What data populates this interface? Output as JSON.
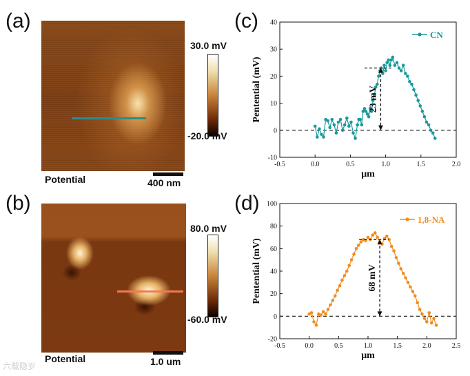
{
  "panels": {
    "a": {
      "letter": "(a)",
      "caption": "Potential",
      "scalebar": "400 nm",
      "colorbar": {
        "max_label": "30.0 mV",
        "min_label": "-20.0 mV"
      },
      "line_color": "#2a8c8c"
    },
    "b": {
      "letter": "(b)",
      "caption": "Potential",
      "scalebar": "1.0 um",
      "colorbar": {
        "max_label": "80.0 mV",
        "min_label": "-60.0 mV"
      },
      "line_color": "#f27a52"
    },
    "c": {
      "letter": "(c)"
    },
    "d": {
      "letter": "(d)"
    }
  },
  "watermark": "六载隐岁",
  "chart_data": [
    {
      "id": "c",
      "type": "line",
      "xlabel": "μm",
      "ylabel": "Pentential (mV)",
      "xlim": [
        -0.5,
        2.0
      ],
      "ylim": [
        -10,
        40
      ],
      "xticks": [
        "-0.5",
        "0.0",
        "0.5",
        "1.0",
        "1.5",
        "2.0"
      ],
      "yticks": [
        "-10",
        "0",
        "10",
        "20",
        "30",
        "40"
      ],
      "series": [
        {
          "name": "CN",
          "color": "#1a9a9a",
          "x": [
            0.0,
            0.03,
            0.06,
            0.09,
            0.12,
            0.15,
            0.18,
            0.21,
            0.24,
            0.27,
            0.3,
            0.33,
            0.36,
            0.39,
            0.42,
            0.45,
            0.48,
            0.51,
            0.54,
            0.57,
            0.6,
            0.62,
            0.64,
            0.66,
            0.68,
            0.7,
            0.72,
            0.74,
            0.76,
            0.78,
            0.8,
            0.82,
            0.84,
            0.86,
            0.88,
            0.9,
            0.92,
            0.94,
            0.96,
            0.98,
            1.0,
            1.02,
            1.04,
            1.06,
            1.08,
            1.1,
            1.13,
            1.16,
            1.19,
            1.22,
            1.25,
            1.28,
            1.31,
            1.34,
            1.37,
            1.4,
            1.43,
            1.46,
            1.49,
            1.52,
            1.55,
            1.58,
            1.61,
            1.64,
            1.67,
            1.7
          ],
          "y": [
            1.5,
            -2.5,
            0.5,
            -1.5,
            -2.5,
            4,
            3.5,
            1,
            4,
            2,
            -1,
            3,
            4,
            0,
            2,
            4.5,
            1.5,
            3,
            -1,
            -3,
            2,
            4,
            4,
            2,
            7,
            8,
            7,
            6,
            5,
            8,
            7,
            11,
            13,
            16,
            17,
            20,
            22,
            23,
            21,
            24,
            22,
            25,
            26,
            24,
            26,
            27,
            24,
            25,
            23,
            22,
            24,
            21,
            20,
            18,
            17,
            15,
            13,
            11,
            9,
            7,
            5,
            3,
            2,
            0,
            -1,
            -3
          ]
        }
      ],
      "annotation": {
        "label": "23 mV",
        "x": 0.93,
        "y_low": 0,
        "y_high": 23,
        "cap_x_range": [
          0.7,
          1.1
        ]
      }
    },
    {
      "id": "d",
      "type": "line",
      "xlabel": "μm",
      "ylabel": "Pentential (mV)",
      "xlim": [
        -0.5,
        2.5
      ],
      "ylim": [
        -20,
        100
      ],
      "xticks": [
        "-0.5",
        "0.0",
        "0.5",
        "1.0",
        "1.5",
        "2.0",
        "2.5"
      ],
      "yticks": [
        "-20",
        "0",
        "20",
        "40",
        "60",
        "80",
        "100"
      ],
      "series": [
        {
          "name": "1,8-NA",
          "color": "#f28c1e",
          "x": [
            0.0,
            0.04,
            0.08,
            0.12,
            0.16,
            0.2,
            0.24,
            0.28,
            0.32,
            0.36,
            0.4,
            0.44,
            0.48,
            0.52,
            0.56,
            0.6,
            0.64,
            0.68,
            0.72,
            0.76,
            0.8,
            0.84,
            0.88,
            0.92,
            0.96,
            1.0,
            1.04,
            1.08,
            1.12,
            1.16,
            1.2,
            1.24,
            1.28,
            1.32,
            1.36,
            1.4,
            1.44,
            1.48,
            1.52,
            1.56,
            1.6,
            1.64,
            1.68,
            1.72,
            1.76,
            1.8,
            1.84,
            1.88,
            1.92,
            1.96,
            2.0,
            2.04,
            2.08,
            2.12,
            2.16
          ],
          "y": [
            2,
            3,
            -5,
            -8,
            2,
            1,
            4,
            2,
            6,
            10,
            14,
            18,
            23,
            27,
            32,
            36,
            40,
            45,
            50,
            55,
            60,
            63,
            66,
            68,
            67,
            70,
            68,
            72,
            74,
            70,
            66,
            64,
            69,
            71,
            68,
            62,
            58,
            52,
            47,
            42,
            38,
            34,
            30,
            26,
            22,
            18,
            12,
            6,
            2,
            -2,
            -5,
            3,
            -6,
            -2,
            -8
          ]
        }
      ],
      "annotation": {
        "label": "68 mV",
        "x": 1.2,
        "y_low": 0,
        "y_high": 68,
        "cap_x_range": [
          0.85,
          1.35
        ]
      }
    }
  ]
}
